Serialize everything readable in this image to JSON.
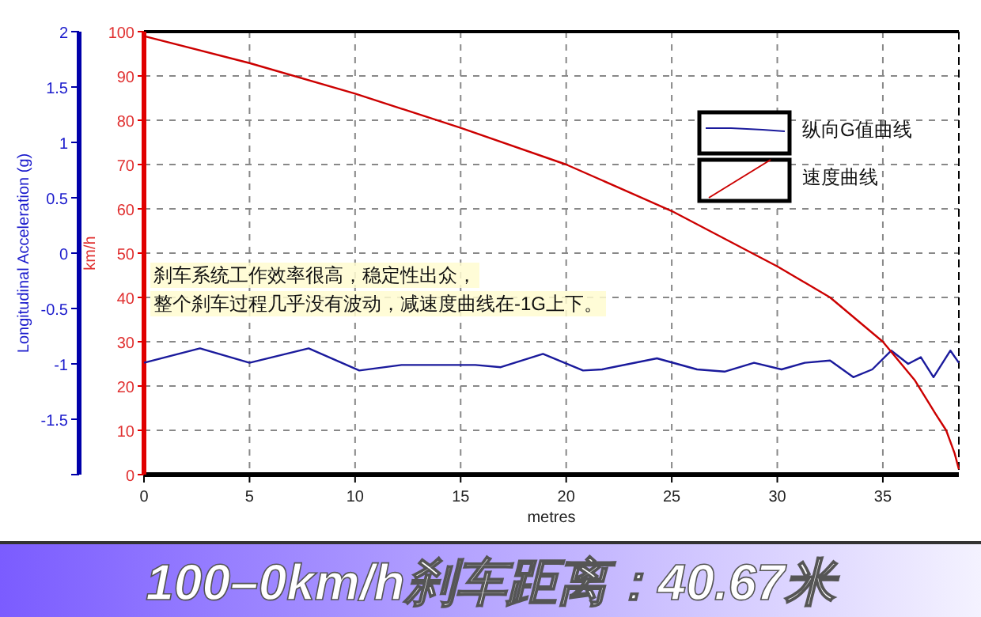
{
  "chart_data": {
    "type": "line",
    "title": "100–0km/h刹车距离：40.67米",
    "xlabel": "metres",
    "ylabel": "Longitudinal Acceleration (g)",
    "y2label": "km/h",
    "xlim": [
      0,
      38.6
    ],
    "xticks": [
      0,
      5,
      10,
      15,
      20,
      25,
      30,
      35
    ],
    "ylim": [
      -2,
      2
    ],
    "yticks": [
      {
        "value": -2,
        "label": null
      },
      -1.5,
      -1,
      -0.5,
      0,
      0.5,
      1,
      1.5,
      2
    ],
    "y2lim": [
      0,
      100
    ],
    "y2ticks": [
      0,
      10,
      20,
      30,
      40,
      50,
      60,
      70,
      80,
      90,
      100
    ],
    "grid": true,
    "legend": "top right",
    "line_style": "solid",
    "marker": "none",
    "annotations": [
      "刹车系统工作效率很高，稳定性出众，",
      "整个刹车过程几乎没有波动，减速度曲线在-1G上下。"
    ],
    "series": [
      {
        "name": "纵向G值曲线",
        "color": "#1a1a9c",
        "x": [
          0,
          2.65,
          5,
          7.8,
          10.2,
          12.2,
          15.7,
          16.9,
          18.9,
          20.8,
          21.7,
          24.3,
          26.2,
          27.5,
          28.9,
          30.2,
          31.3,
          32.5,
          33.6,
          34.5,
          35.4,
          36.2,
          36.8,
          37.4,
          38.2,
          38.6
        ],
        "values": [
          -0.99,
          -0.86,
          -0.99,
          -0.86,
          -1.06,
          -1.01,
          -1.01,
          -1.03,
          -0.91,
          -1.06,
          -1.05,
          -0.95,
          -1.05,
          -1.07,
          -0.99,
          -1.05,
          -0.99,
          -0.97,
          -1.12,
          -1.05,
          -0.88,
          -1.0,
          -0.94,
          -1.12,
          -0.88,
          -0.99
        ]
      },
      {
        "name": "速度曲线",
        "color": "#cc0000",
        "axis": "y2",
        "x": [
          0,
          5,
          10,
          15,
          20,
          25,
          30,
          32.5,
          35,
          36.5,
          37.5,
          38,
          38.4,
          38.6
        ],
        "values": [
          99,
          92.9,
          86,
          78.3,
          70,
          59.5,
          47,
          40,
          30,
          21.4,
          13.7,
          10,
          4.8,
          1.2
        ]
      }
    ]
  }
}
